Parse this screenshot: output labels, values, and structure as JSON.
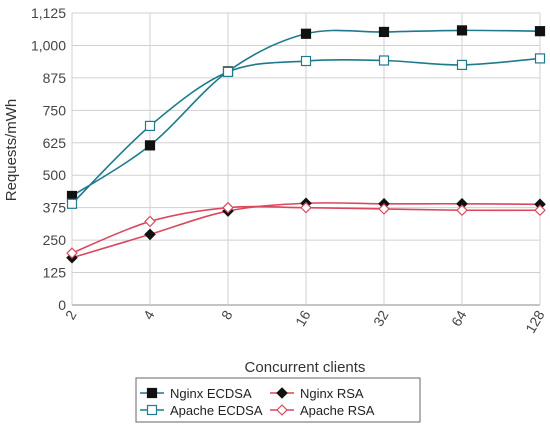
{
  "chart_data": {
    "type": "line",
    "xlabel": "Concurrent clients",
    "ylabel": "Requests/mWh",
    "x": [
      2,
      4,
      8,
      16,
      32,
      64,
      128
    ],
    "x_scale": "log2",
    "x_tick_labels": [
      "2",
      "4",
      "8",
      "16",
      "32",
      "64",
      "128"
    ],
    "ylim": [
      0,
      1125
    ],
    "y_ticks": [
      0,
      125,
      250,
      375,
      500,
      625,
      750,
      875,
      1000,
      1125
    ],
    "y_tick_labels": [
      "0",
      "125",
      "250",
      "375",
      "500",
      "625",
      "750",
      "875",
      "1,000",
      "1,125"
    ],
    "grid": true,
    "legend_position": "bottom",
    "series": [
      {
        "name": "Nginx ECDSA",
        "values": [
          420,
          615,
          900,
          1045,
          1052,
          1058,
          1055
        ],
        "color": "#1f7a8c",
        "marker": "square-filled"
      },
      {
        "name": "Nginx RSA",
        "values": [
          182,
          272,
          362,
          392,
          390,
          390,
          388
        ],
        "color": "#d9485f",
        "marker": "diamond-filled"
      },
      {
        "name": "Apache ECDSA",
        "values": [
          390,
          690,
          898,
          940,
          942,
          925,
          950
        ],
        "color": "#1f7a8c",
        "marker": "square-open"
      },
      {
        "name": "Apache RSA",
        "values": [
          200,
          322,
          375,
          375,
          370,
          365,
          365
        ],
        "color": "#d9485f",
        "marker": "diamond-open"
      }
    ]
  }
}
